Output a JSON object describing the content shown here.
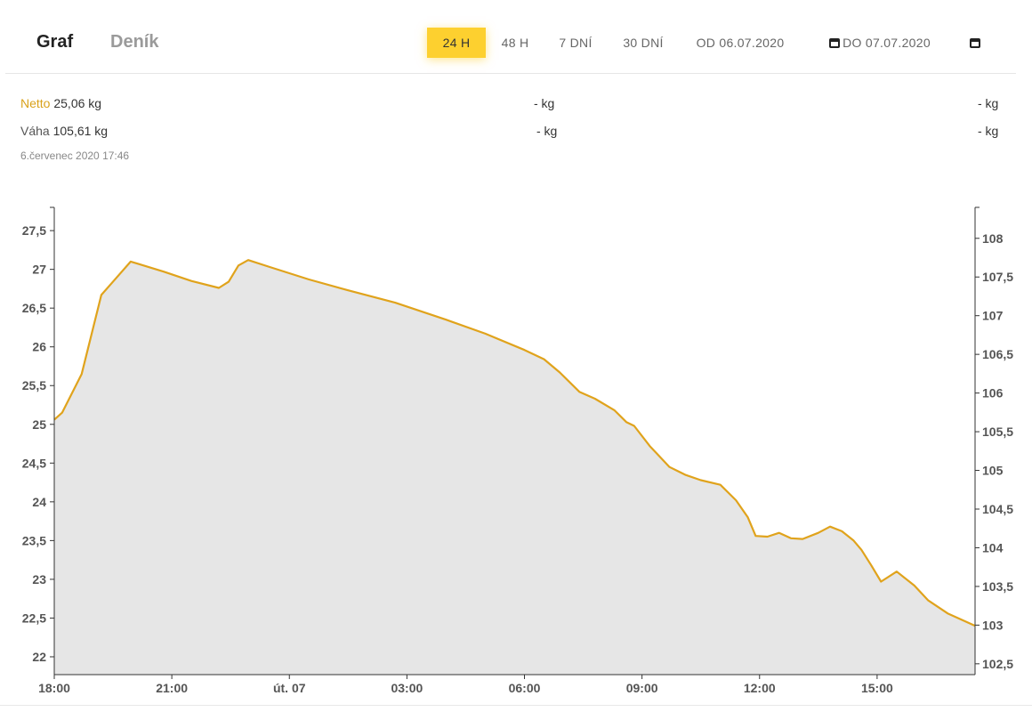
{
  "header": {
    "tabs": [
      {
        "label": "Graf",
        "active": true
      },
      {
        "label": "Deník",
        "active": false
      }
    ],
    "ranges": [
      {
        "label": "24 H",
        "active": true
      },
      {
        "label": "48 H",
        "active": false
      },
      {
        "label": "7 DNÍ",
        "active": false
      },
      {
        "label": "30 DNÍ",
        "active": false
      }
    ],
    "date_from": "OD 06.07.2020",
    "date_to": "DO 07.07.2020",
    "accent": "#fdd02f"
  },
  "readouts": {
    "netto_label": "Netto",
    "netto_value": "25,06 kg",
    "vaha_label": "Váha",
    "vaha_value": "105,61 kg",
    "placeholder": "- kg",
    "timestamp": "6.červenec 2020 17:46"
  },
  "chart_data": {
    "type": "area",
    "title": "",
    "xlabel": "",
    "ylabel": "",
    "line_color": "#e0a31c",
    "fill_color": "#e6e6e6",
    "grid": false,
    "x_range": [
      0,
      23.5
    ],
    "x_ticks": [
      {
        "value": 0,
        "label": "18:00"
      },
      {
        "value": 3,
        "label": "21:00"
      },
      {
        "value": 6,
        "label": "út. 07"
      },
      {
        "value": 9,
        "label": "03:00"
      },
      {
        "value": 12,
        "label": "06:00"
      },
      {
        "value": 15,
        "label": "09:00"
      },
      {
        "value": 18,
        "label": "12:00"
      },
      {
        "value": 21,
        "label": "15:00"
      }
    ],
    "y_left": {
      "range": [
        21.77,
        27.8
      ],
      "ticks": [
        22,
        22.5,
        23,
        23.5,
        24,
        24.5,
        25,
        25.5,
        26,
        26.5,
        27,
        27.5
      ],
      "tick_labels": [
        "22",
        "22,5",
        "23",
        "23,5",
        "24",
        "24,5",
        "25",
        "25,5",
        "26",
        "26,5",
        "27",
        "27,5"
      ]
    },
    "y_right": {
      "range": [
        102.36,
        108.4
      ],
      "ticks": [
        102.5,
        103,
        103.5,
        104,
        104.5,
        105,
        105.5,
        106,
        106.5,
        107,
        107.5,
        108
      ],
      "tick_labels": [
        "102,5",
        "103",
        "103,5",
        "104",
        "104,5",
        "105",
        "105,5",
        "106",
        "106,5",
        "107",
        "107,5",
        "108"
      ]
    },
    "series": [
      {
        "name": "Netto",
        "axis": "left",
        "x": [
          0,
          0.2,
          0.45,
          0.7,
          1.2,
          1.95,
          2.15,
          2.8,
          3.5,
          4.2,
          4.45,
          4.7,
          4.95,
          5.5,
          6.5,
          7.5,
          8.7,
          10,
          11,
          12,
          12.5,
          12.9,
          13.4,
          13.8,
          14.3,
          14.6,
          14.8,
          15.2,
          15.7,
          16.1,
          16.5,
          17,
          17.4,
          17.7,
          17.9,
          18.2,
          18.5,
          18.8,
          19.1,
          19.5,
          19.8,
          20.1,
          20.4,
          20.6,
          20.85,
          21.1,
          21.5,
          21.95,
          22.3,
          22.8,
          23.5
        ],
        "y": [
          25.06,
          25.15,
          25.4,
          25.65,
          26.67,
          27.1,
          27.07,
          26.97,
          26.85,
          26.76,
          26.84,
          27.05,
          27.12,
          27.03,
          26.87,
          26.73,
          26.57,
          26.35,
          26.17,
          25.96,
          25.84,
          25.67,
          25.42,
          25.33,
          25.18,
          25.03,
          24.98,
          24.72,
          24.45,
          24.35,
          24.28,
          24.22,
          24.02,
          23.8,
          23.56,
          23.55,
          23.6,
          23.53,
          23.52,
          23.6,
          23.68,
          23.62,
          23.5,
          23.38,
          23.18,
          22.97,
          23.1,
          22.92,
          22.73,
          22.56,
          22.4
        ]
      }
    ]
  }
}
